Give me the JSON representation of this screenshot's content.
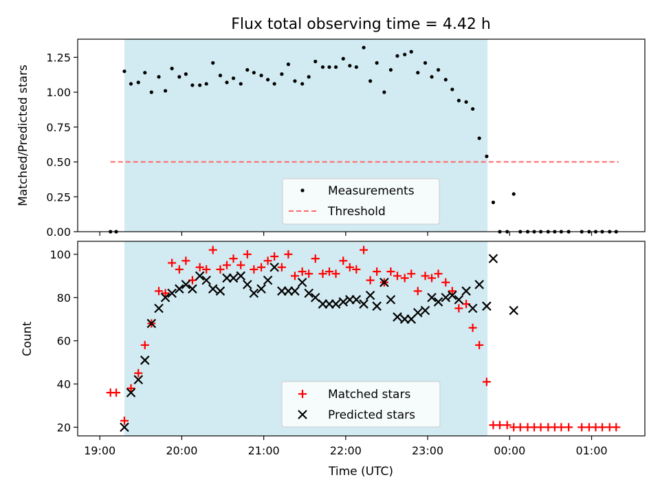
{
  "title": "Flux total observing time = 4.42 h",
  "x_axis": {
    "label": "Time (UTC)",
    "tick_labels": [
      "19:00",
      "20:00",
      "21:00",
      "22:00",
      "23:00",
      "00:00",
      "01:00"
    ],
    "tick_values_h": [
      19,
      20,
      21,
      22,
      23,
      24,
      25
    ]
  },
  "top_panel": {
    "ylabel": "Matched/Predicted stars",
    "yticks": [
      "0.00",
      "0.25",
      "0.50",
      "0.75",
      "1.00",
      "1.25"
    ],
    "ytick_values": [
      0,
      0.25,
      0.5,
      0.75,
      1.0,
      1.25
    ]
  },
  "bottom_panel": {
    "ylabel": "Count",
    "yticks": [
      "20",
      "40",
      "60",
      "80",
      "100"
    ],
    "ytick_values": [
      20,
      40,
      60,
      80,
      100
    ]
  },
  "legend_top": {
    "measurements": "Measurements",
    "threshold": "Threshold"
  },
  "legend_bottom": {
    "matched": "Matched stars",
    "predicted": "Predicted stars"
  },
  "colors": {
    "shade": "#add8e6",
    "threshold": "#ff6666",
    "matched": "#ff0000",
    "predicted": "#000000",
    "measurements": "#000000"
  },
  "chart_data": [
    {
      "type": "scatter",
      "panel": "top",
      "x_unit": "hours UTC (values above 24 are past midnight)",
      "xlim": [
        18.73,
        25.65
      ],
      "ylim": [
        0,
        1.38
      ],
      "observing_window": [
        19.3,
        23.73
      ],
      "threshold": {
        "value": 0.5,
        "x_range": [
          19.13,
          25.33
        ]
      },
      "series": [
        {
          "name": "Measurements",
          "x": [
            19.13,
            19.2,
            19.3,
            19.38,
            19.47,
            19.55,
            19.63,
            19.72,
            19.8,
            19.88,
            19.97,
            20.05,
            20.13,
            20.22,
            20.3,
            20.38,
            20.47,
            20.55,
            20.63,
            20.72,
            20.8,
            20.88,
            20.97,
            21.05,
            21.13,
            21.22,
            21.3,
            21.38,
            21.47,
            21.55,
            21.63,
            21.72,
            21.8,
            21.88,
            21.97,
            22.05,
            22.13,
            22.22,
            22.3,
            22.38,
            22.47,
            22.55,
            22.63,
            22.72,
            22.8,
            22.88,
            22.97,
            23.05,
            23.13,
            23.22,
            23.3,
            23.38,
            23.47,
            23.55,
            23.63,
            23.72,
            23.8,
            23.88,
            23.97,
            24.05,
            24.13,
            24.22,
            24.3,
            24.38,
            24.47,
            24.55,
            24.63,
            24.72,
            24.88,
            24.97,
            25.05,
            25.13,
            25.22,
            25.3
          ],
          "y": [
            0,
            0,
            1.15,
            1.06,
            1.07,
            1.14,
            1.0,
            1.11,
            1.01,
            1.17,
            1.11,
            1.13,
            1.05,
            1.05,
            1.06,
            1.21,
            1.12,
            1.07,
            1.1,
            1.06,
            1.16,
            1.14,
            1.12,
            1.09,
            1.06,
            1.13,
            1.2,
            1.08,
            1.06,
            1.11,
            1.22,
            1.18,
            1.18,
            1.18,
            1.24,
            1.19,
            1.18,
            1.32,
            1.08,
            1.21,
            1.0,
            1.16,
            1.26,
            1.27,
            1.29,
            1.14,
            1.21,
            1.11,
            1.16,
            1.09,
            1.02,
            0.94,
            0.93,
            0.88,
            0.67,
            0.54,
            0.21,
            0,
            0,
            0.27,
            0,
            0,
            0,
            0,
            0,
            0,
            0,
            0,
            0,
            0,
            0,
            0,
            0,
            0
          ]
        }
      ]
    },
    {
      "type": "scatter",
      "panel": "bottom",
      "x_unit": "hours UTC (values above 24 are past midnight)",
      "xlim": [
        18.73,
        25.65
      ],
      "ylim": [
        16,
        106
      ],
      "observing_window": [
        19.3,
        23.73
      ],
      "series": [
        {
          "name": "Matched stars",
          "x": [
            19.13,
            19.2,
            19.3,
            19.38,
            19.47,
            19.55,
            19.63,
            19.72,
            19.8,
            19.88,
            19.97,
            20.05,
            20.13,
            20.22,
            20.3,
            20.38,
            20.47,
            20.55,
            20.63,
            20.72,
            20.8,
            20.88,
            20.97,
            21.05,
            21.13,
            21.22,
            21.3,
            21.38,
            21.47,
            21.55,
            21.63,
            21.72,
            21.8,
            21.88,
            21.97,
            22.05,
            22.13,
            22.22,
            22.3,
            22.38,
            22.47,
            22.55,
            22.63,
            22.72,
            22.8,
            22.88,
            22.97,
            23.05,
            23.13,
            23.22,
            23.3,
            23.38,
            23.47,
            23.55,
            23.63,
            23.72,
            23.8,
            23.88,
            23.97,
            24.05,
            24.13,
            24.22,
            24.3,
            24.38,
            24.47,
            24.55,
            24.63,
            24.72,
            24.88,
            24.97,
            25.05,
            25.13,
            25.22,
            25.3
          ],
          "y": [
            36,
            36,
            23,
            38,
            45,
            58,
            68,
            83,
            82,
            96,
            93,
            97,
            88,
            94,
            93,
            102,
            93,
            95,
            98,
            95,
            100,
            93,
            94,
            97,
            99,
            94,
            100,
            90,
            92,
            91,
            98,
            91,
            92,
            91,
            97,
            94,
            93,
            102,
            88,
            92,
            87,
            92,
            90,
            89,
            91,
            83,
            90,
            89,
            91,
            87,
            83,
            75,
            77,
            66,
            58,
            41,
            21,
            21,
            21,
            20,
            20,
            20,
            20,
            20,
            20,
            20,
            20,
            20,
            20,
            20,
            20,
            20,
            20,
            20
          ]
        },
        {
          "name": "Predicted stars",
          "x": [
            19.3,
            19.38,
            19.47,
            19.55,
            19.63,
            19.72,
            19.8,
            19.88,
            19.97,
            20.05,
            20.13,
            20.22,
            20.3,
            20.38,
            20.47,
            20.55,
            20.63,
            20.72,
            20.8,
            20.88,
            20.97,
            21.05,
            21.13,
            21.22,
            21.3,
            21.38,
            21.47,
            21.55,
            21.63,
            21.72,
            21.8,
            21.88,
            21.97,
            22.05,
            22.13,
            22.22,
            22.3,
            22.38,
            22.47,
            22.55,
            22.63,
            22.72,
            22.8,
            22.88,
            22.97,
            23.05,
            23.13,
            23.22,
            23.3,
            23.38,
            23.47,
            23.55,
            23.63,
            23.72,
            23.8,
            24.05
          ],
          "y": [
            20,
            36,
            42,
            51,
            68,
            75,
            80,
            82,
            84,
            86,
            84,
            90,
            88,
            84,
            83,
            89,
            89,
            90,
            86,
            82,
            84,
            88,
            94,
            83,
            83,
            83,
            87,
            82,
            80,
            77,
            77,
            77,
            78,
            79,
            79,
            77,
            81,
            76,
            87,
            79,
            71,
            70,
            70,
            73,
            74,
            80,
            78,
            80,
            81,
            79,
            83,
            75,
            86,
            76,
            98,
            74
          ]
        }
      ]
    }
  ]
}
